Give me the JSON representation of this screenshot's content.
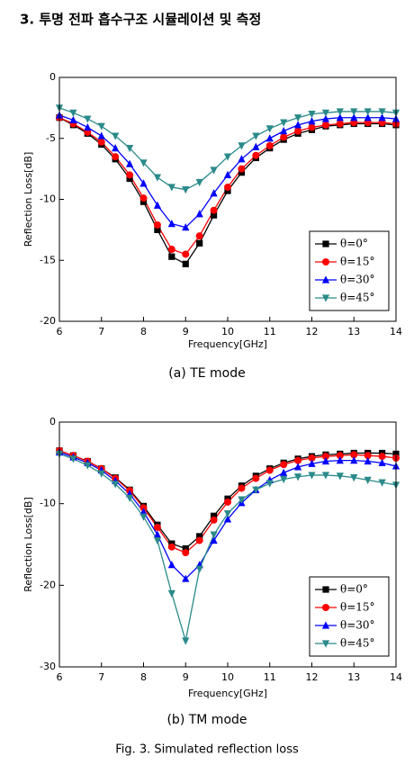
{
  "heading": "3. 투명 전파 흡수구조 시뮬레이션 및 측정",
  "figure_caption": "Fig. 3. Simulated reflection loss",
  "chart_data": [
    {
      "type": "line",
      "caption": "(a) TE mode",
      "x_label": "Frequency[GHz]",
      "y_label": "Reflection Loss[dB]",
      "xlim": [
        6,
        14
      ],
      "xticks": [
        6,
        7,
        8,
        9,
        10,
        11,
        12,
        13,
        14
      ],
      "ylim": [
        -20,
        0
      ],
      "yticks": [
        -20,
        -15,
        -10,
        -5,
        0
      ],
      "legend": "lower right",
      "x": [
        6,
        6.33,
        6.67,
        7,
        7.33,
        7.67,
        8,
        8.33,
        8.67,
        9,
        9.33,
        9.67,
        10,
        10.33,
        10.67,
        11,
        11.33,
        11.67,
        12,
        12.33,
        12.67,
        13,
        13.33,
        13.67,
        14
      ],
      "series": [
        {
          "name": "θ=0°",
          "color": "#000000",
          "marker": "square",
          "values": [
            -3.3,
            -3.9,
            -4.6,
            -5.5,
            -6.7,
            -8.3,
            -10.2,
            -12.5,
            -14.7,
            -15.3,
            -13.6,
            -11.3,
            -9.3,
            -7.8,
            -6.6,
            -5.8,
            -5.1,
            -4.6,
            -4.3,
            -4.0,
            -3.9,
            -3.8,
            -3.8,
            -3.8,
            -3.9
          ]
        },
        {
          "name": "θ=15°",
          "color": "#ff0000",
          "marker": "circle",
          "values": [
            -3.3,
            -3.8,
            -4.5,
            -5.3,
            -6.5,
            -8.0,
            -9.9,
            -12.1,
            -14.1,
            -14.5,
            -13.0,
            -10.9,
            -9.0,
            -7.5,
            -6.4,
            -5.6,
            -4.9,
            -4.4,
            -4.1,
            -3.9,
            -3.8,
            -3.7,
            -3.7,
            -3.7,
            -3.8
          ]
        },
        {
          "name": "θ=30°",
          "color": "#0000ff",
          "marker": "triangle-up",
          "values": [
            -3.1,
            -3.5,
            -4.1,
            -4.8,
            -5.8,
            -7.1,
            -8.7,
            -10.5,
            -12.0,
            -12.3,
            -11.2,
            -9.5,
            -8.0,
            -6.7,
            -5.7,
            -5.0,
            -4.4,
            -3.9,
            -3.6,
            -3.4,
            -3.3,
            -3.3,
            -3.3,
            -3.3,
            -3.4
          ]
        },
        {
          "name": "θ=45°",
          "color": "#2a8a8a",
          "marker": "triangle-down",
          "values": [
            -2.5,
            -2.9,
            -3.4,
            -4.0,
            -4.8,
            -5.8,
            -7.0,
            -8.2,
            -9.0,
            -9.2,
            -8.6,
            -7.6,
            -6.5,
            -5.6,
            -4.8,
            -4.2,
            -3.7,
            -3.3,
            -3.0,
            -2.9,
            -2.8,
            -2.8,
            -2.8,
            -2.8,
            -2.9
          ]
        }
      ]
    },
    {
      "type": "line",
      "caption": "(b) TM mode",
      "x_label": "Frequency[GHz]",
      "y_label": "Reflection Loss[dB]",
      "xlim": [
        6,
        14
      ],
      "xticks": [
        6,
        7,
        8,
        9,
        10,
        11,
        12,
        13,
        14
      ],
      "ylim": [
        -30,
        0
      ],
      "yticks": [
        -30,
        -20,
        -10,
        0
      ],
      "legend": "lower right",
      "x": [
        6,
        6.33,
        6.67,
        7,
        7.33,
        7.67,
        8,
        8.33,
        8.67,
        9,
        9.33,
        9.67,
        10,
        10.33,
        10.67,
        11,
        11.33,
        11.67,
        12,
        12.33,
        12.67,
        13,
        13.33,
        13.67,
        14
      ],
      "series": [
        {
          "name": "θ=0°",
          "color": "#000000",
          "marker": "square",
          "values": [
            -3.5,
            -4.1,
            -4.8,
            -5.7,
            -6.8,
            -8.3,
            -10.3,
            -12.6,
            -14.9,
            -15.5,
            -14.0,
            -11.5,
            -9.4,
            -7.8,
            -6.6,
            -5.7,
            -5.0,
            -4.5,
            -4.2,
            -4.0,
            -3.9,
            -3.8,
            -3.8,
            -3.8,
            -3.9
          ]
        },
        {
          "name": "θ=15°",
          "color": "#ff0000",
          "marker": "circle",
          "values": [
            -3.5,
            -4.1,
            -4.8,
            -5.7,
            -6.9,
            -8.4,
            -10.5,
            -12.9,
            -15.3,
            -16.0,
            -14.5,
            -12.0,
            -9.8,
            -8.1,
            -6.9,
            -5.9,
            -5.2,
            -4.7,
            -4.4,
            -4.2,
            -4.1,
            -4.0,
            -4.1,
            -4.2,
            -4.4
          ]
        },
        {
          "name": "θ=30°",
          "color": "#0000ff",
          "marker": "triangle-up",
          "values": [
            -3.7,
            -4.3,
            -5.0,
            -5.9,
            -7.2,
            -8.8,
            -11.0,
            -13.8,
            -17.5,
            -19.2,
            -17.5,
            -14.5,
            -11.9,
            -9.9,
            -8.3,
            -7.1,
            -6.2,
            -5.5,
            -5.1,
            -4.8,
            -4.7,
            -4.7,
            -4.8,
            -5.0,
            -5.4
          ]
        },
        {
          "name": "θ=45°",
          "color": "#2a8a8a",
          "marker": "triangle-down",
          "values": [
            -3.9,
            -4.5,
            -5.3,
            -6.3,
            -7.6,
            -9.3,
            -11.6,
            -14.5,
            -21.0,
            -26.8,
            -18.0,
            -13.8,
            -11.2,
            -9.5,
            -8.3,
            -7.5,
            -7.0,
            -6.7,
            -6.5,
            -6.5,
            -6.6,
            -6.8,
            -7.1,
            -7.4,
            -7.7
          ]
        }
      ]
    }
  ]
}
